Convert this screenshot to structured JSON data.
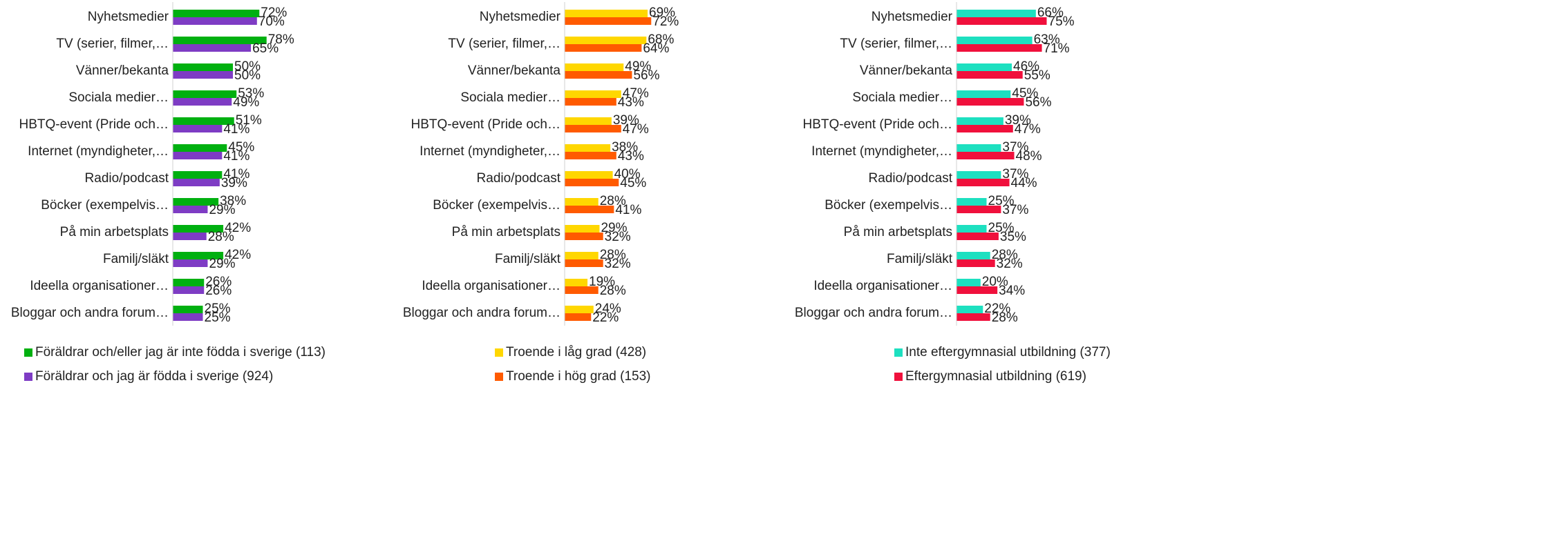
{
  "chart_data": [
    {
      "type": "barh",
      "categories": [
        "Nyhetsmedier",
        "TV (serier, filmer,…",
        "Vänner/bekanta",
        "Sociala medier…",
        "HBTQ-event (Pride och…",
        "Internet (myndigheter,…",
        "Radio/podcast",
        "Böcker (exempelvis…",
        "På min arbetsplats",
        "Familj/släkt",
        "Ideella organisationer…",
        "Bloggar och andra forum…"
      ],
      "xlim": [
        0,
        100
      ],
      "series": [
        {
          "name": "Föräldrar och/eller jag är inte födda i sverige (113)",
          "color": "#00b010",
          "values": [
            72,
            78,
            50,
            53,
            51,
            45,
            41,
            38,
            42,
            42,
            26,
            25
          ],
          "value_labels": [
            "72%",
            "78%",
            "50%",
            "53%",
            "51%",
            "45%",
            "41%",
            "38%",
            "42%",
            "42%",
            "26%",
            "25%"
          ]
        },
        {
          "name": "Föräldrar och jag är födda i sverige (924)",
          "color": "#7e3cc4",
          "values": [
            70,
            65,
            50,
            49,
            41,
            41,
            39,
            29,
            28,
            29,
            26,
            25
          ],
          "value_labels": [
            "70%",
            "65%",
            "50%",
            "49%",
            "41%",
            "41%",
            "39%",
            "29%",
            "28%",
            "29%",
            "26%",
            "25%"
          ]
        }
      ]
    },
    {
      "type": "barh",
      "categories": [
        "Nyhetsmedier",
        "TV (serier, filmer,…",
        "Vänner/bekanta",
        "Sociala medier…",
        "HBTQ-event (Pride och…",
        "Internet (myndigheter,…",
        "Radio/podcast",
        "Böcker (exempelvis…",
        "På min arbetsplats",
        "Familj/släkt",
        "Ideella organisationer…",
        "Bloggar och andra forum…"
      ],
      "xlim": [
        0,
        100
      ],
      "series": [
        {
          "name": "Troende i låg grad (428)",
          "color": "#ffd700",
          "values": [
            69,
            68,
            49,
            47,
            39,
            38,
            40,
            28,
            29,
            28,
            19,
            24
          ],
          "value_labels": [
            "69%",
            "68%",
            "49%",
            "47%",
            "39%",
            "38%",
            "40%",
            "28%",
            "29%",
            "28%",
            "19%",
            "24%"
          ]
        },
        {
          "name": "Troende i hög grad (153)",
          "color": "#ff5a00",
          "values": [
            72,
            64,
            56,
            43,
            47,
            43,
            45,
            41,
            32,
            32,
            28,
            22
          ],
          "value_labels": [
            "72%",
            "64%",
            "56%",
            "43%",
            "47%",
            "43%",
            "45%",
            "41%",
            "32%",
            "32%",
            "28%",
            "22%"
          ]
        }
      ]
    },
    {
      "type": "barh",
      "categories": [
        "Nyhetsmedier",
        "TV (serier, filmer,…",
        "Vänner/bekanta",
        "Sociala medier…",
        "HBTQ-event (Pride och…",
        "Internet (myndigheter,…",
        "Radio/podcast",
        "Böcker (exempelvis…",
        "På min arbetsplats",
        "Familj/släkt",
        "Ideella organisationer…",
        "Bloggar och andra forum…"
      ],
      "xlim": [
        0,
        100
      ],
      "series": [
        {
          "name": "Inte eftergymnasial utbildning (377)",
          "color": "#1de0c0",
          "values": [
            66,
            63,
            46,
            45,
            39,
            37,
            37,
            25,
            25,
            28,
            20,
            22
          ],
          "value_labels": [
            "66%",
            "63%",
            "46%",
            "45%",
            "39%",
            "37%",
            "37%",
            "25%",
            "25%",
            "28%",
            "20%",
            "22%"
          ]
        },
        {
          "name": "Eftergymnasial utbildning (619)",
          "color": "#f0103c",
          "values": [
            75,
            71,
            55,
            56,
            47,
            48,
            44,
            37,
            35,
            32,
            34,
            28
          ],
          "value_labels": [
            "75%",
            "71%",
            "55%",
            "56%",
            "47%",
            "48%",
            "44%",
            "37%",
            "35%",
            "32%",
            "34%",
            "28%"
          ]
        }
      ]
    }
  ]
}
